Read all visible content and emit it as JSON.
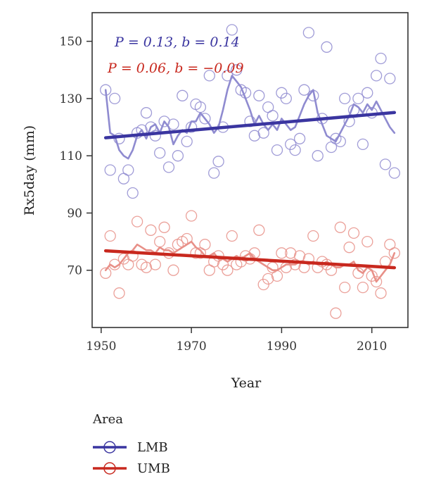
{
  "chart_data": {
    "type": "line",
    "xlabel": "Year",
    "ylabel": "Rx5day (mm)",
    "xlim": [
      1948,
      2018
    ],
    "ylim": [
      50,
      160
    ],
    "xticks": [
      1950,
      1970,
      1990,
      2010
    ],
    "yticks": [
      70,
      90,
      110,
      130,
      150
    ],
    "grid": false,
    "legend": {
      "title": "Area",
      "position": "bottom-left",
      "entries": [
        "LMB",
        "UMB"
      ]
    },
    "annotations": [
      {
        "series": "LMB",
        "p_value": "P = 0.13",
        "slope": "b = 0.14",
        "color": "#3a35a0"
      },
      {
        "series": "UMB",
        "p_value": "P = 0.06",
        "slope": "b = −0.09",
        "color": "#c8281e"
      }
    ],
    "series": [
      {
        "name": "LMB",
        "color": "#3a35a0",
        "light_color": "#8f8bd0",
        "points_x": [
          1951,
          1952,
          1953,
          1954,
          1955,
          1956,
          1957,
          1958,
          1959,
          1960,
          1961,
          1962,
          1963,
          1964,
          1965,
          1966,
          1967,
          1968,
          1969,
          1970,
          1971,
          1972,
          1973,
          1974,
          1975,
          1976,
          1977,
          1978,
          1979,
          1980,
          1981,
          1982,
          1983,
          1984,
          1985,
          1986,
          1987,
          1988,
          1989,
          1990,
          1991,
          1992,
          1993,
          1994,
          1995,
          1996,
          1997,
          1998,
          1999,
          2000,
          2001,
          2002,
          2003,
          2004,
          2005,
          2006,
          2007,
          2008,
          2009,
          2010,
          2011,
          2012,
          2013,
          2014,
          2015
        ],
        "points_y": [
          133,
          105,
          130,
          116,
          102,
          105,
          97,
          118,
          119,
          125,
          120,
          117,
          111,
          122,
          106,
          121,
          110,
          131,
          115,
          120,
          128,
          127,
          123,
          138,
          104,
          108,
          120,
          138,
          154,
          140,
          133,
          132,
          122,
          117,
          131,
          118,
          127,
          124,
          112,
          132,
          130,
          114,
          112,
          116,
          133,
          153,
          131,
          110,
          123,
          148,
          113,
          116,
          115,
          130,
          122,
          126,
          130,
          114,
          132,
          125,
          138,
          144,
          107,
          137,
          104
        ],
        "moving_avg_x": [
          1951,
          1952,
          1953,
          1954,
          1955,
          1956,
          1957,
          1958,
          1959,
          1960,
          1961,
          1962,
          1963,
          1964,
          1965,
          1966,
          1967,
          1968,
          1969,
          1970,
          1971,
          1972,
          1973,
          1974,
          1975,
          1976,
          1977,
          1978,
          1979,
          1980,
          1981,
          1982,
          1983,
          1984,
          1985,
          1986,
          1987,
          1988,
          1989,
          1990,
          1991,
          1992,
          1993,
          1994,
          1995,
          1996,
          1997,
          1998,
          1999,
          2000,
          2001,
          2002,
          2003,
          2004,
          2005,
          2006,
          2007,
          2008,
          2009,
          2010,
          2011,
          2012,
          2013,
          2014,
          2015
        ],
        "moving_avg_y": [
          133,
          118,
          117,
          112,
          110,
          109,
          112,
          117,
          119,
          116,
          120,
          121,
          118,
          122,
          120,
          114,
          117,
          119,
          118,
          122,
          122,
          125,
          123,
          121,
          118,
          120,
          126,
          133,
          138,
          136,
          134,
          130,
          126,
          121,
          124,
          121,
          119,
          121,
          119,
          123,
          121,
          119,
          120,
          124,
          128,
          131,
          133,
          125,
          121,
          117,
          116,
          115,
          118,
          121,
          124,
          128,
          127,
          125,
          128,
          126,
          129,
          126,
          123,
          120,
          118
        ],
        "trend": {
          "x": [
            1951,
            2015
          ],
          "y": [
            116.3,
            125.1
          ]
        }
      },
      {
        "name": "UMB",
        "color": "#c8281e",
        "light_color": "#e89088",
        "points_x": [
          1951,
          1952,
          1953,
          1954,
          1955,
          1956,
          1957,
          1958,
          1959,
          1960,
          1961,
          1962,
          1963,
          1964,
          1965,
          1966,
          1967,
          1968,
          1969,
          1970,
          1971,
          1972,
          1973,
          1974,
          1975,
          1976,
          1977,
          1978,
          1979,
          1980,
          1981,
          1982,
          1983,
          1984,
          1985,
          1986,
          1987,
          1988,
          1989,
          1990,
          1991,
          1992,
          1993,
          1994,
          1995,
          1996,
          1997,
          1998,
          1999,
          2000,
          2001,
          2002,
          2003,
          2004,
          2005,
          2006,
          2007,
          2008,
          2009,
          2010,
          2011,
          2012,
          2013,
          2014,
          2015
        ],
        "points_y": [
          69,
          82,
          72,
          62,
          74,
          72,
          75,
          87,
          72,
          71,
          84,
          72,
          80,
          85,
          76,
          70,
          79,
          80,
          81,
          89,
          76,
          76,
          79,
          70,
          73,
          75,
          72,
          70,
          82,
          72,
          73,
          75,
          74,
          76,
          84,
          65,
          67,
          71,
          68,
          76,
          71,
          76,
          72,
          75,
          71,
          74,
          82,
          71,
          73,
          72,
          70,
          55,
          85,
          64,
          78,
          83,
          69,
          64,
          80,
          68,
          66,
          62,
          73,
          79,
          76
        ],
        "moving_avg_x": [
          1951,
          1952,
          1953,
          1954,
          1955,
          1956,
          1957,
          1958,
          1959,
          1960,
          1961,
          1962,
          1963,
          1964,
          1965,
          1966,
          1967,
          1968,
          1969,
          1970,
          1971,
          1972,
          1973,
          1974,
          1975,
          1976,
          1977,
          1978,
          1979,
          1980,
          1981,
          1982,
          1983,
          1984,
          1985,
          1986,
          1987,
          1988,
          1989,
          1990,
          1991,
          1992,
          1993,
          1994,
          1995,
          1996,
          1997,
          1998,
          1999,
          2000,
          2001,
          2002,
          2003,
          2004,
          2005,
          2006,
          2007,
          2008,
          2009,
          2010,
          2011,
          2012,
          2013,
          2014,
          2015
        ],
        "moving_avg_y": [
          70,
          72,
          71,
          72,
          74,
          76,
          77,
          79,
          78,
          77,
          77,
          76,
          78,
          77,
          77,
          76,
          77,
          78,
          79,
          80,
          78,
          77,
          75,
          75,
          76,
          74,
          74,
          73,
          74,
          75,
          74,
          75,
          76,
          74,
          73,
          72,
          71,
          70,
          70,
          71,
          72,
          72,
          72,
          73,
          73,
          72,
          73,
          72,
          72,
          73,
          72,
          71,
          71,
          72,
          72,
          73,
          70,
          69,
          71,
          70,
          66,
          68,
          70,
          72,
          76
        ],
        "trend": {
          "x": [
            1951,
            2015
          ],
          "y": [
            76.8,
            70.9
          ]
        }
      }
    ]
  }
}
